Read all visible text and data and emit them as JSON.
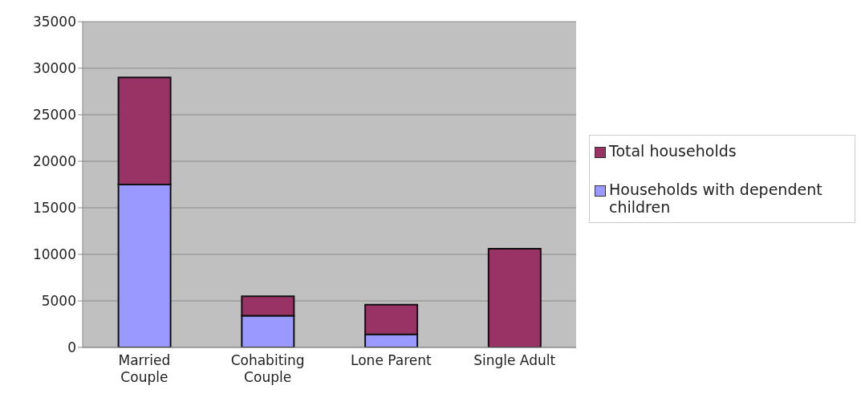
{
  "chart_data": {
    "type": "bar",
    "stacked": true,
    "categories": [
      "Married Couple",
      "Cohabiting Couple",
      "Lone Parent",
      "Single Adult"
    ],
    "series": [
      {
        "name": "Households with dependent children",
        "color": "#9999ff",
        "values": [
          17500,
          3400,
          1400,
          0
        ]
      },
      {
        "name": "Total households",
        "color": "#993366",
        "values": [
          11500,
          2100,
          3200,
          10600
        ]
      }
    ],
    "ylim": [
      0,
      35000
    ],
    "yticks": [
      0,
      5000,
      10000,
      15000,
      20000,
      25000,
      30000,
      35000
    ],
    "grid": "y",
    "legend": "right"
  }
}
